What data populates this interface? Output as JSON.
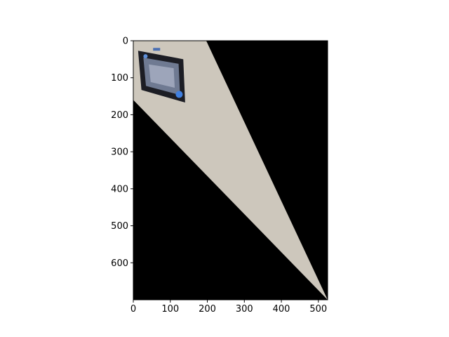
{
  "chart_data": {
    "type": "image",
    "xlim": [
      0,
      525
    ],
    "ylim": [
      700,
      0
    ],
    "x_ticks": [
      0,
      100,
      200,
      300,
      400,
      500
    ],
    "y_ticks": [
      0,
      100,
      200,
      300,
      400,
      500,
      600
    ],
    "x_tick_labels": [
      "0",
      "100",
      "200",
      "300",
      "400",
      "500"
    ],
    "y_tick_labels": [
      "0",
      "100",
      "200",
      "300",
      "400",
      "500",
      "600"
    ],
    "background_color": "#000000",
    "wall_color": "#cdc7bc",
    "wall_polygon": [
      [
        0,
        0
      ],
      [
        197,
        0
      ],
      [
        525,
        700
      ],
      [
        0,
        160
      ]
    ],
    "picture_frame_polygon": [
      [
        13,
        27
      ],
      [
        135,
        50
      ],
      [
        140,
        167
      ],
      [
        22,
        133
      ]
    ],
    "grid": false,
    "title": "",
    "xlabel": "",
    "ylabel": ""
  }
}
